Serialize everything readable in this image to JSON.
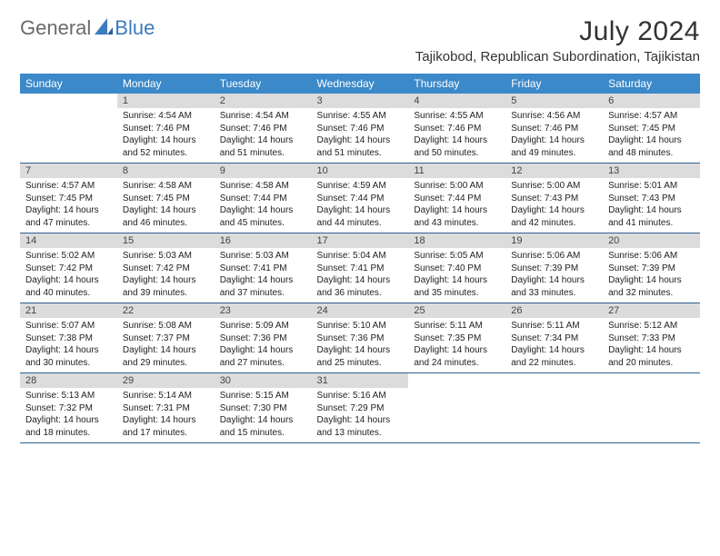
{
  "logo": {
    "text1": "General",
    "text2": "Blue",
    "color1": "#6a6a6a",
    "color2": "#3b7bbf",
    "icon_color": "#3b7bbf"
  },
  "title": "July 2024",
  "location": "Tajikobod, Republican Subordination, Tajikistan",
  "header_bg": "#3b89c9",
  "header_fg": "#ffffff",
  "daynum_bg": "#dcdcdc",
  "divider_color": "#2d5f8f",
  "weekdays": [
    "Sunday",
    "Monday",
    "Tuesday",
    "Wednesday",
    "Thursday",
    "Friday",
    "Saturday"
  ],
  "weeks": [
    [
      {
        "n": "",
        "sr": "",
        "ss": "",
        "dl": ""
      },
      {
        "n": "1",
        "sr": "Sunrise: 4:54 AM",
        "ss": "Sunset: 7:46 PM",
        "dl": "Daylight: 14 hours and 52 minutes."
      },
      {
        "n": "2",
        "sr": "Sunrise: 4:54 AM",
        "ss": "Sunset: 7:46 PM",
        "dl": "Daylight: 14 hours and 51 minutes."
      },
      {
        "n": "3",
        "sr": "Sunrise: 4:55 AM",
        "ss": "Sunset: 7:46 PM",
        "dl": "Daylight: 14 hours and 51 minutes."
      },
      {
        "n": "4",
        "sr": "Sunrise: 4:55 AM",
        "ss": "Sunset: 7:46 PM",
        "dl": "Daylight: 14 hours and 50 minutes."
      },
      {
        "n": "5",
        "sr": "Sunrise: 4:56 AM",
        "ss": "Sunset: 7:46 PM",
        "dl": "Daylight: 14 hours and 49 minutes."
      },
      {
        "n": "6",
        "sr": "Sunrise: 4:57 AM",
        "ss": "Sunset: 7:45 PM",
        "dl": "Daylight: 14 hours and 48 minutes."
      }
    ],
    [
      {
        "n": "7",
        "sr": "Sunrise: 4:57 AM",
        "ss": "Sunset: 7:45 PM",
        "dl": "Daylight: 14 hours and 47 minutes."
      },
      {
        "n": "8",
        "sr": "Sunrise: 4:58 AM",
        "ss": "Sunset: 7:45 PM",
        "dl": "Daylight: 14 hours and 46 minutes."
      },
      {
        "n": "9",
        "sr": "Sunrise: 4:58 AM",
        "ss": "Sunset: 7:44 PM",
        "dl": "Daylight: 14 hours and 45 minutes."
      },
      {
        "n": "10",
        "sr": "Sunrise: 4:59 AM",
        "ss": "Sunset: 7:44 PM",
        "dl": "Daylight: 14 hours and 44 minutes."
      },
      {
        "n": "11",
        "sr": "Sunrise: 5:00 AM",
        "ss": "Sunset: 7:44 PM",
        "dl": "Daylight: 14 hours and 43 minutes."
      },
      {
        "n": "12",
        "sr": "Sunrise: 5:00 AM",
        "ss": "Sunset: 7:43 PM",
        "dl": "Daylight: 14 hours and 42 minutes."
      },
      {
        "n": "13",
        "sr": "Sunrise: 5:01 AM",
        "ss": "Sunset: 7:43 PM",
        "dl": "Daylight: 14 hours and 41 minutes."
      }
    ],
    [
      {
        "n": "14",
        "sr": "Sunrise: 5:02 AM",
        "ss": "Sunset: 7:42 PM",
        "dl": "Daylight: 14 hours and 40 minutes."
      },
      {
        "n": "15",
        "sr": "Sunrise: 5:03 AM",
        "ss": "Sunset: 7:42 PM",
        "dl": "Daylight: 14 hours and 39 minutes."
      },
      {
        "n": "16",
        "sr": "Sunrise: 5:03 AM",
        "ss": "Sunset: 7:41 PM",
        "dl": "Daylight: 14 hours and 37 minutes."
      },
      {
        "n": "17",
        "sr": "Sunrise: 5:04 AM",
        "ss": "Sunset: 7:41 PM",
        "dl": "Daylight: 14 hours and 36 minutes."
      },
      {
        "n": "18",
        "sr": "Sunrise: 5:05 AM",
        "ss": "Sunset: 7:40 PM",
        "dl": "Daylight: 14 hours and 35 minutes."
      },
      {
        "n": "19",
        "sr": "Sunrise: 5:06 AM",
        "ss": "Sunset: 7:39 PM",
        "dl": "Daylight: 14 hours and 33 minutes."
      },
      {
        "n": "20",
        "sr": "Sunrise: 5:06 AM",
        "ss": "Sunset: 7:39 PM",
        "dl": "Daylight: 14 hours and 32 minutes."
      }
    ],
    [
      {
        "n": "21",
        "sr": "Sunrise: 5:07 AM",
        "ss": "Sunset: 7:38 PM",
        "dl": "Daylight: 14 hours and 30 minutes."
      },
      {
        "n": "22",
        "sr": "Sunrise: 5:08 AM",
        "ss": "Sunset: 7:37 PM",
        "dl": "Daylight: 14 hours and 29 minutes."
      },
      {
        "n": "23",
        "sr": "Sunrise: 5:09 AM",
        "ss": "Sunset: 7:36 PM",
        "dl": "Daylight: 14 hours and 27 minutes."
      },
      {
        "n": "24",
        "sr": "Sunrise: 5:10 AM",
        "ss": "Sunset: 7:36 PM",
        "dl": "Daylight: 14 hours and 25 minutes."
      },
      {
        "n": "25",
        "sr": "Sunrise: 5:11 AM",
        "ss": "Sunset: 7:35 PM",
        "dl": "Daylight: 14 hours and 24 minutes."
      },
      {
        "n": "26",
        "sr": "Sunrise: 5:11 AM",
        "ss": "Sunset: 7:34 PM",
        "dl": "Daylight: 14 hours and 22 minutes."
      },
      {
        "n": "27",
        "sr": "Sunrise: 5:12 AM",
        "ss": "Sunset: 7:33 PM",
        "dl": "Daylight: 14 hours and 20 minutes."
      }
    ],
    [
      {
        "n": "28",
        "sr": "Sunrise: 5:13 AM",
        "ss": "Sunset: 7:32 PM",
        "dl": "Daylight: 14 hours and 18 minutes."
      },
      {
        "n": "29",
        "sr": "Sunrise: 5:14 AM",
        "ss": "Sunset: 7:31 PM",
        "dl": "Daylight: 14 hours and 17 minutes."
      },
      {
        "n": "30",
        "sr": "Sunrise: 5:15 AM",
        "ss": "Sunset: 7:30 PM",
        "dl": "Daylight: 14 hours and 15 minutes."
      },
      {
        "n": "31",
        "sr": "Sunrise: 5:16 AM",
        "ss": "Sunset: 7:29 PM",
        "dl": "Daylight: 14 hours and 13 minutes."
      },
      {
        "n": "",
        "sr": "",
        "ss": "",
        "dl": ""
      },
      {
        "n": "",
        "sr": "",
        "ss": "",
        "dl": ""
      },
      {
        "n": "",
        "sr": "",
        "ss": "",
        "dl": ""
      }
    ]
  ]
}
